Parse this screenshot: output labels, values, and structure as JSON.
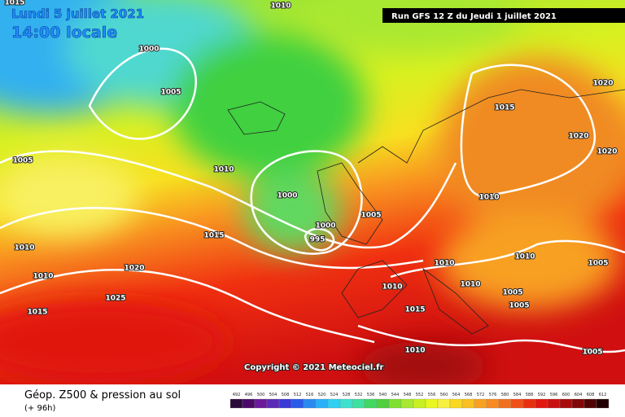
{
  "header": {
    "date": "Lundi 5 juillet 2021",
    "time": "14:00 locale",
    "run": "Run GFS 12 Z du Jeudi 1 juillet 2021"
  },
  "copyright": "Copyright © 2021 Meteociel.fr",
  "footer": {
    "title": "Géop. Z500 & pression au sol",
    "lead": "(+ 96h)"
  },
  "isobar_labels": [
    "1015",
    "1010",
    "1000",
    "1005",
    "1005",
    "1010",
    "1000",
    "1000",
    "995",
    "1005",
    "1015",
    "1010",
    "1020",
    "1010",
    "1025",
    "1015",
    "1020",
    "1015",
    "1020",
    "1020",
    "1010",
    "1010",
    "1010",
    "1010",
    "1005",
    "1010",
    "1005",
    "1005",
    "1015",
    "1010",
    "1005"
  ],
  "legend": {
    "labels": [
      492,
      496,
      500,
      504,
      508,
      512,
      516,
      520,
      524,
      528,
      532,
      536,
      540,
      544,
      548,
      552,
      556,
      560,
      564,
      568,
      572,
      576,
      580,
      584,
      588,
      592,
      596,
      600,
      604,
      608,
      612
    ]
  }
}
